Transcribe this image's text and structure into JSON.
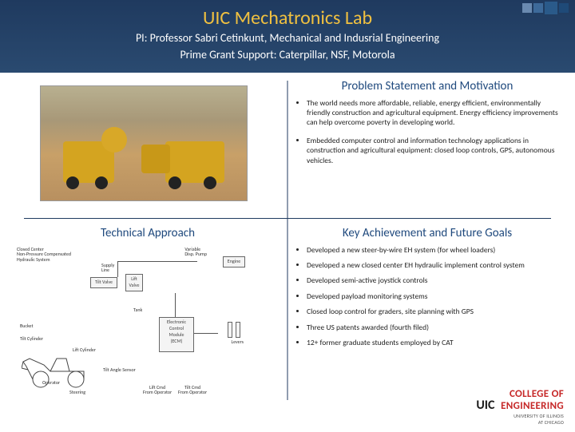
{
  "header": {
    "title": "UIC Mechatronics Lab",
    "subtitle_line1": "PI: Professor Sabri Cetinkunt, Mechanical and Indusrial Engineering",
    "subtitle_line2": "Prime Grant Support: Caterpillar, NSF, Motorola",
    "title_color": "#f0c040",
    "bg_gradient_top": "#1f3a5f",
    "bg_gradient_bottom": "#2a4a70"
  },
  "sections": {
    "problem": {
      "title": "Problem Statement and Motivation",
      "bullets": [
        "The world needs more affordable, reliable, energy efficient, environmentally friendly construction and agricultural equipment.  Energy efficiency improvements can help overcome poverty in developing world.",
        "Embedded computer control and information  technology applications in construction and agricultural equipment: closed loop controls, GPS, autonomous vehicles."
      ]
    },
    "technical": {
      "title": "Technical Approach",
      "diagram_labels": {
        "closed_center": "Closed Center\nNon-Pressure Compensated\nHydraulic System",
        "variable_pump": "Variable\nDisp. Pump",
        "engine": "Engine",
        "supply_line": "Supply\nLine",
        "tilt_valve": "Tilt Valve",
        "lift_valve": "Lift\nValve",
        "tank": "Tank",
        "ecm": "Electronic\nControl\nModule\n(ECM)",
        "levers": "Levers",
        "bucket": "Bucket",
        "tilt_cylinder": "Tilt Cylinder",
        "lift_cylinder": "Lift Cylinder",
        "operator": "Operator",
        "steering": "Steering",
        "tilt_angle_sensor": "Tilt Angle Sensor",
        "lift_cmd": "Lift Cmd\nFrom Operator",
        "tilt_cmd": "Tilt Cmd\nFrom Operator"
      }
    },
    "achievements": {
      "title": "Key Achievement and Future Goals",
      "bullets": [
        "Developed a new steer-by-wire EH system (for wheel loaders)",
        "Developed a new closed center EH hydraulic implement control system",
        "Developed semi-active joystick controls",
        "Developed payload monitoring systems",
        "Closed loop control for graders, site planning with GPS",
        "Three US patents awarded (fourth filed)",
        "12+ former graduate students employed by CAT"
      ]
    }
  },
  "logo": {
    "uic": "UIC",
    "coe": "COLLEGE OF\nENGINEERING",
    "sub": "UNIVERSITY OF ILLINOIS\nAT CHICAGO"
  },
  "colors": {
    "section_title": "#1f497d",
    "divider": "#1f3a5f",
    "logo_red": "#c62828"
  }
}
